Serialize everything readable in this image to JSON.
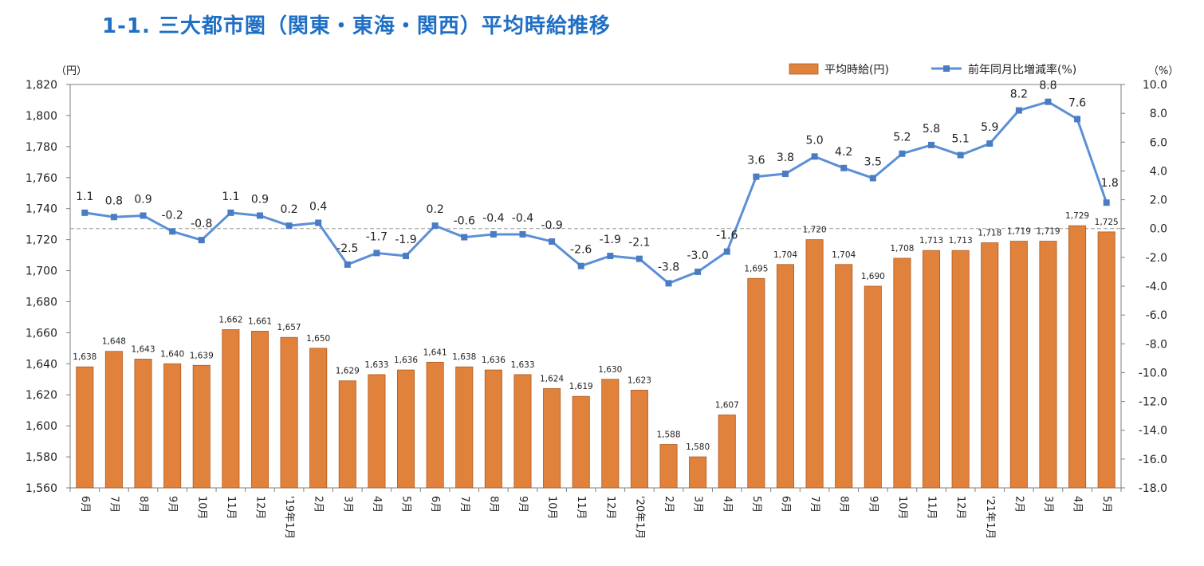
{
  "title": "1-1. 三大都市圏（関東・東海・関西）平均時給推移",
  "colors": {
    "bar": "#e0823c",
    "bar_edge": "#b05a1f",
    "line": "#5b8fd6",
    "marker": "#4a7cc4",
    "title": "#1f6fc5",
    "zero_line": "#999999"
  },
  "chart_data": {
    "type": "bar",
    "left_unit": "（円）",
    "right_unit": "（%）",
    "categories": [
      "6月",
      "7月",
      "8月",
      "9月",
      "10月",
      "11月",
      "12月",
      "'19年1月",
      "2月",
      "3月",
      "4月",
      "5月",
      "6月",
      "7月",
      "8月",
      "9月",
      "10月",
      "11月",
      "12月",
      "'20年1月",
      "2月",
      "3月",
      "4月",
      "5月",
      "6月",
      "7月",
      "8月",
      "9月",
      "10月",
      "11月",
      "12月",
      "'21年1月",
      "2月",
      "3月",
      "4月",
      "5月"
    ],
    "ylim_left": [
      1560,
      1820
    ],
    "yticks_left": [
      "1,560",
      "1,580",
      "1,600",
      "1,620",
      "1,640",
      "1,660",
      "1,680",
      "1,700",
      "1,720",
      "1,740",
      "1,760",
      "1,780",
      "1,800",
      "1,820"
    ],
    "ylim_right": [
      -18,
      10
    ],
    "yticks_right": [
      "-18.0",
      "-16.0",
      "-14.0",
      "-12.0",
      "-10.0",
      "-8.0",
      "-6.0",
      "-4.0",
      "-2.0",
      "0.0",
      "2.0",
      "4.0",
      "6.0",
      "8.0",
      "10.0"
    ],
    "series": [
      {
        "name": "平均時給(円)",
        "axis": "left",
        "values": [
          1638,
          1648,
          1643,
          1640,
          1639,
          1662,
          1661,
          1657,
          1650,
          1629,
          1633,
          1636,
          1641,
          1638,
          1636,
          1633,
          1624,
          1619,
          1630,
          1623,
          1588,
          1580,
          1607,
          1695,
          1704,
          1720,
          1704,
          1690,
          1708,
          1713,
          1713,
          1718,
          1719,
          1719,
          1729,
          1725
        ],
        "labels": [
          "1,638",
          "1,648",
          "1,643",
          "1,640",
          "1,639",
          "1,662",
          "1,661",
          "1,657",
          "1,650",
          "1,629",
          "1,633",
          "1,636",
          "1,641",
          "1,638",
          "1,636",
          "1,633",
          "1,624",
          "1,619",
          "1,630",
          "1,623",
          "1,588",
          "1,580",
          "1,607",
          "1,695",
          "1,704",
          "1,720",
          "1,704",
          "1,690",
          "1,708",
          "1,713",
          "1,713",
          "1,718",
          "1,719",
          "1,719",
          "1,729",
          "1,725"
        ]
      },
      {
        "name": "前年同月比増減率(%)",
        "axis": "right",
        "values": [
          1.1,
          0.8,
          0.9,
          -0.2,
          -0.8,
          1.1,
          0.9,
          0.2,
          0.4,
          -2.5,
          -1.7,
          -1.9,
          0.2,
          -0.6,
          -0.4,
          -0.4,
          -0.9,
          -2.6,
          -1.9,
          -2.1,
          -3.8,
          -3.0,
          -1.6,
          3.6,
          3.8,
          5.0,
          4.2,
          3.5,
          5.2,
          5.8,
          5.1,
          5.9,
          8.2,
          8.8,
          7.6,
          1.8
        ],
        "labels": [
          "1.1",
          "0.8",
          "0.9",
          "-0.2",
          "-0.8",
          "1.1",
          "0.9",
          "0.2",
          "0.4",
          "-2.5",
          "-1.7",
          "-1.9",
          "0.2",
          "-0.6",
          "-0.4",
          "-0.4",
          "-0.9",
          "-2.6",
          "-1.9",
          "-2.1",
          "-3.8",
          "-3.0",
          "-1.6",
          "3.6",
          "3.8",
          "5.0",
          "4.2",
          "3.5",
          "5.2",
          "5.8",
          "5.1",
          "5.9",
          "8.2",
          "8.8",
          "7.6",
          "1.8"
        ]
      }
    ],
    "legend_position": "top-right",
    "grid": false
  }
}
